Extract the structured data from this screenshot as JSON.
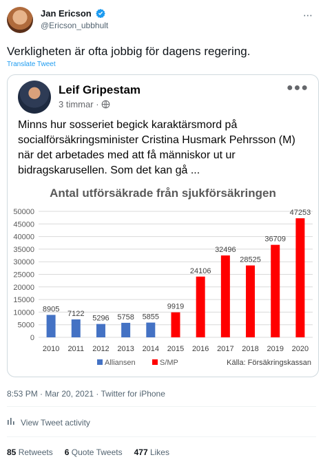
{
  "tweet": {
    "author_name": "Jan Ericson",
    "author_handle": "@Ericson_ubbhult",
    "text": "Verkligheten är ofta jobbig för dagens regering.",
    "translate_label": "Translate Tweet",
    "timestamp": "8:53 PM · Mar 20, 2021 · Twitter for iPhone",
    "activity_label": "View Tweet activity",
    "stats": {
      "retweets_count": "85",
      "retweets_label": "Retweets",
      "quotes_count": "6",
      "quotes_label": "Quote Tweets",
      "likes_count": "477",
      "likes_label": "Likes"
    }
  },
  "embedded_post": {
    "author_name": "Leif Gripestam",
    "time": "3 timmar",
    "text": "Minns hur sosseriet begick karaktärsmord på socialförsäkringsminister Cristina Husmark Pehrsson (M) när det arbetades med att få människor ut ur bidragskarusellen. Som det kan gå ..."
  },
  "colors": {
    "accent": "#1d9bf0",
    "verified": "#1d9bf0",
    "series_alliansen": "#4472c4",
    "series_smp": "#ff0000"
  },
  "icons": {
    "verified": "verified-badge-icon",
    "globe": "globe-icon",
    "more": "more-dots-icon",
    "activity": "bar-chart-icon"
  },
  "chart_data": {
    "type": "bar",
    "title": "Antal utförsäkrade från sjukförsäkringen",
    "categories": [
      "2010",
      "2011",
      "2012",
      "2013",
      "2014",
      "2015",
      "2016",
      "2017",
      "2018",
      "2019",
      "2020"
    ],
    "values": [
      8905,
      7122,
      5296,
      5758,
      5855,
      9919,
      24106,
      32496,
      28525,
      36709,
      47253
    ],
    "data_labels": [
      "8905",
      "7122",
      "5296",
      "5758",
      "5855",
      "9919",
      "24106",
      "32496",
      "28525",
      "36709",
      "47253"
    ],
    "series_by_category": [
      "Alliansen",
      "Alliansen",
      "Alliansen",
      "Alliansen",
      "Alliansen",
      "S/MP",
      "S/MP",
      "S/MP",
      "S/MP",
      "S/MP",
      "S/MP"
    ],
    "series": [
      {
        "name": "Alliansen",
        "color": "#4472c4"
      },
      {
        "name": "S/MP",
        "color": "#ff0000"
      }
    ],
    "ylim": [
      0,
      50000
    ],
    "yticks": [
      "0",
      "5000",
      "10000",
      "15000",
      "20000",
      "25000",
      "30000",
      "35000",
      "40000",
      "45000",
      "50000"
    ],
    "grid": true,
    "legend": "bottom-left",
    "source": "Källa: Försäkringskassan"
  }
}
